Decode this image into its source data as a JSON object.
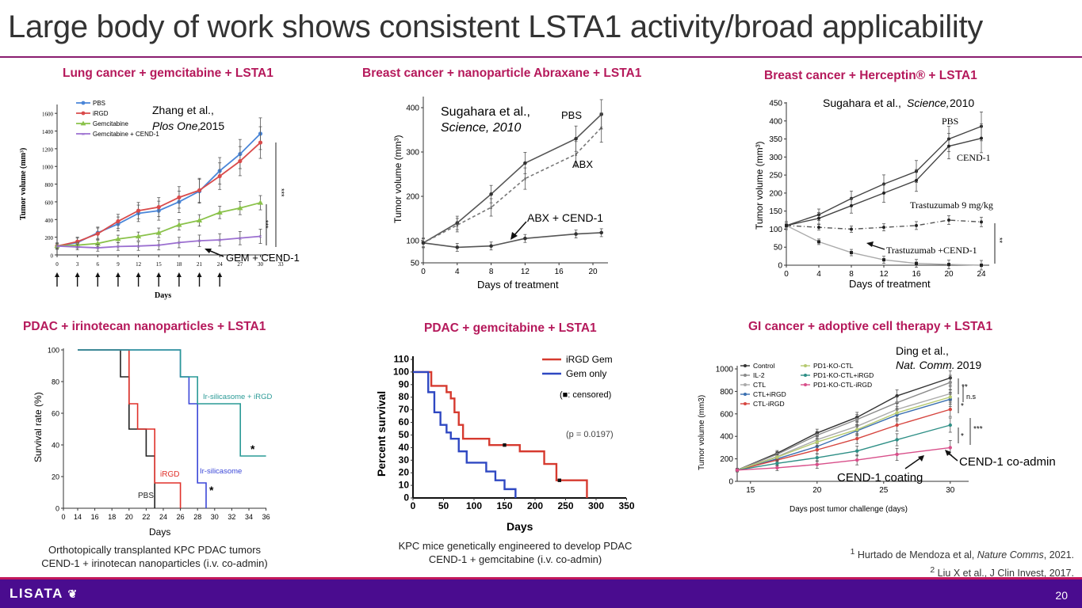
{
  "slide": {
    "title": "Large body of work shows consistent LSTA1 activity/broad applicability",
    "page_number": "20",
    "logo": "LISATA",
    "colors": {
      "title_rule": "#8a1d6f",
      "heading": "#b5195b",
      "footer": "#4a0c8f"
    }
  },
  "panels": {
    "lung": {
      "heading": "Lung cancer + gemcitabine + LSTA1",
      "citation_a": "Zhang et al.,",
      "citation_b": "Plos One,",
      "citation_c": "2015",
      "annotation": "GEM + CEND-1",
      "ylabel": "Tumor volume (mm³)",
      "xlabel": "Days",
      "significance": "***",
      "chart_data": {
        "type": "line",
        "x": [
          0,
          3,
          6,
          9,
          12,
          15,
          18,
          21,
          24,
          27,
          30
        ],
        "xticks": [
          "0",
          "3",
          "6",
          "9",
          "12",
          "15",
          "18",
          "21",
          "24",
          "27",
          "30",
          "33"
        ],
        "yticks": [
          "0",
          "200",
          "400",
          "600",
          "800",
          "1000",
          "1200",
          "1400",
          "1600"
        ],
        "ylim": [
          0,
          1700
        ],
        "series": [
          {
            "name": "PBS",
            "color": "#4a86d8",
            "values": [
              100,
              140,
              250,
              350,
              470,
              500,
              600,
              720,
              950,
              1140,
              1370
            ]
          },
          {
            "name": "iRGD",
            "color": "#d94b4b",
            "values": [
              100,
              150,
              240,
              380,
              500,
              540,
              650,
              730,
              890,
              1060,
              1270
            ]
          },
          {
            "name": "Gemcitabine",
            "color": "#8ac24a",
            "values": [
              100,
              110,
              130,
              180,
              210,
              250,
              340,
              390,
              480,
              530,
              590
            ]
          },
          {
            "name": "Gemcitabine + CEND-1",
            "color": "#9b6fd0",
            "values": [
              100,
              90,
              80,
              95,
              100,
              110,
              140,
              160,
              170,
              190,
              210
            ]
          }
        ]
      }
    },
    "breast_abx": {
      "heading": "Breast cancer + nanoparticle Abraxane + LSTA1",
      "citation_a": "Sugahara et al.,",
      "citation_b": "Science, 2010",
      "ylabel": "Tumor volume (mm³)",
      "xlabel": "Days of treatment",
      "label_pbs": "PBS",
      "label_abx": "ABX",
      "label_combo": "ABX + CEND-1",
      "chart_data": {
        "type": "line",
        "x": [
          0,
          4,
          8,
          12,
          18,
          21
        ],
        "xticks": [
          "0",
          "4",
          "8",
          "12",
          "16",
          "20"
        ],
        "yticks": [
          "50",
          "100",
          "200",
          "300",
          "400"
        ],
        "ylim": [
          50,
          420
        ],
        "series": [
          {
            "name": "PBS",
            "values": [
              95,
              140,
              205,
              275,
              330,
              385
            ]
          },
          {
            "name": "ABX",
            "values": [
              95,
              135,
              175,
              240,
              295,
              355
            ]
          },
          {
            "name": "ABX + CEND-1",
            "values": [
              95,
              85,
              88,
              105,
              115,
              118
            ]
          }
        ]
      }
    },
    "breast_her": {
      "heading": "Breast cancer + Herceptin® + LSTA1",
      "citation_a": "Sugahara et al.,",
      "citation_b": "Science,",
      "citation_c": "2010",
      "ylabel": "Tumor volume (mm³)",
      "xlabel": "Days of treatment",
      "label_pbs": "PBS",
      "label_cend": "CEND-1",
      "label_tras": "Trastuzumab 9 mg/kg",
      "label_combo": "Trastuzumab +CEND-1",
      "significance": "**",
      "chart_data": {
        "type": "line",
        "x": [
          0,
          4,
          8,
          12,
          16,
          20,
          24
        ],
        "xticks": [
          "0",
          "4",
          "8",
          "12",
          "16",
          "20",
          "24"
        ],
        "yticks": [
          "0",
          "50",
          "100",
          "150",
          "200",
          "250",
          "300",
          "350",
          "400",
          "450"
        ],
        "ylim": [
          0,
          450
        ],
        "series": [
          {
            "name": "PBS",
            "values": [
              110,
              140,
              185,
              225,
              260,
              350,
              385
            ]
          },
          {
            "name": "CEND-1",
            "values": [
              110,
              130,
              165,
              200,
              235,
              330,
              352
            ]
          },
          {
            "name": "Trastuzumab 9 mg/kg",
            "values": [
              110,
              105,
              100,
              105,
              110,
              125,
              120
            ]
          },
          {
            "name": "Trastuzumab +CEND-1",
            "values": [
              110,
              65,
              35,
              15,
              5,
              2,
              0
            ]
          }
        ]
      }
    },
    "pdac_irino": {
      "heading": "PDAC + irinotecan nanoparticles + LSTA1",
      "ylabel": "Survival rate (%)",
      "xlabel": "Days",
      "label_irgd": "iRGD",
      "label_pbs": "PBS",
      "label_ir": "Ir-silicasome",
      "label_ir_irgd": "Ir-silicasome + iRGD",
      "caption_line1": "Orthotopically transplanted KPC PDAC tumors",
      "caption_line2": "CEND-1 + irinotecan nanoparticles (i.v. co-admin)",
      "chart_data": {
        "type": "line",
        "xticks": [
          "0",
          "14",
          "16",
          "18",
          "20",
          "22",
          "24",
          "26",
          "28",
          "30",
          "32",
          "34",
          "36"
        ],
        "yticks": [
          "0",
          "20",
          "40",
          "60",
          "80",
          "100"
        ],
        "ylim": [
          0,
          100
        ],
        "series": [
          {
            "name": "PBS",
            "color": "#222222",
            "steps": [
              [
                14,
                100
              ],
              [
                19,
                100
              ],
              [
                19,
                83
              ],
              [
                20,
                83
              ],
              [
                20,
                50
              ],
              [
                22,
                50
              ],
              [
                22,
                33
              ],
              [
                23,
                33
              ],
              [
                23,
                0
              ]
            ]
          },
          {
            "name": "iRGD",
            "color": "#e0312a",
            "steps": [
              [
                14,
                100
              ],
              [
                20,
                100
              ],
              [
                20,
                66
              ],
              [
                21,
                66
              ],
              [
                21,
                50
              ],
              [
                23,
                50
              ],
              [
                23,
                16
              ],
              [
                26,
                16
              ],
              [
                26,
                0
              ]
            ]
          },
          {
            "name": "Ir-silicasome",
            "color": "#3b47d8",
            "steps": [
              [
                14,
                100
              ],
              [
                26,
                100
              ],
              [
                26,
                83
              ],
              [
                27,
                83
              ],
              [
                27,
                66
              ],
              [
                28,
                66
              ],
              [
                28,
                16
              ],
              [
                29,
                16
              ],
              [
                29,
                0
              ]
            ]
          },
          {
            "name": "Ir-silicasome + iRGD",
            "color": "#2a9a96",
            "steps": [
              [
                14,
                100
              ],
              [
                26,
                100
              ],
              [
                26,
                83
              ],
              [
                28,
                83
              ],
              [
                28,
                66
              ],
              [
                33,
                66
              ],
              [
                33,
                33
              ],
              [
                36,
                33
              ]
            ]
          }
        ]
      }
    },
    "pdac_gem": {
      "heading": "PDAC + gemcitabine + LSTA1",
      "ylabel": "Percent survival",
      "xlabel": "Days",
      "legend_irgd": "iRGD Gem",
      "legend_gem": "Gem only",
      "censored": "(■: censored)",
      "pvalue": "(p = 0.0197)",
      "caption_line1": "KPC mice genetically engineered to develop PDAC",
      "caption_line2": "CEND-1 + gemcitabine (i.v. co-admin)",
      "chart_data": {
        "type": "line",
        "xticks": [
          "0",
          "50",
          "100",
          "150",
          "200",
          "250",
          "300",
          "350"
        ],
        "yticks": [
          "0",
          "10",
          "20",
          "30",
          "40",
          "50",
          "60",
          "70",
          "80",
          "90",
          "100",
          "110"
        ],
        "ylim": [
          0,
          110
        ],
        "series": [
          {
            "name": "iRGD Gem",
            "color": "#d63a2f",
            "steps": [
              [
                0,
                100
              ],
              [
                30,
                100
              ],
              [
                30,
                89
              ],
              [
                55,
                89
              ],
              [
                55,
                84
              ],
              [
                62,
                84
              ],
              [
                62,
                79
              ],
              [
                68,
                79
              ],
              [
                68,
                68
              ],
              [
                75,
                68
              ],
              [
                75,
                58
              ],
              [
                82,
                58
              ],
              [
                82,
                47
              ],
              [
                125,
                47
              ],
              [
                125,
                42
              ],
              [
                175,
                42
              ],
              [
                175,
                37
              ],
              [
                215,
                37
              ],
              [
                215,
                27
              ],
              [
                235,
                27
              ],
              [
                235,
                14
              ],
              [
                285,
                14
              ],
              [
                285,
                0
              ]
            ]
          },
          {
            "name": "Gem only",
            "color": "#2f48c2",
            "steps": [
              [
                0,
                100
              ],
              [
                25,
                100
              ],
              [
                25,
                84
              ],
              [
                35,
                84
              ],
              [
                35,
                68
              ],
              [
                45,
                68
              ],
              [
                45,
                58
              ],
              [
                55,
                58
              ],
              [
                55,
                52
              ],
              [
                62,
                52
              ],
              [
                62,
                47
              ],
              [
                75,
                47
              ],
              [
                75,
                37
              ],
              [
                88,
                37
              ],
              [
                88,
                28
              ],
              [
                120,
                28
              ],
              [
                120,
                21
              ],
              [
                135,
                21
              ],
              [
                135,
                14
              ],
              [
                150,
                14
              ],
              [
                150,
                7
              ],
              [
                168,
                7
              ],
              [
                168,
                0
              ]
            ]
          }
        ]
      }
    },
    "gi": {
      "heading": "GI cancer + adoptive cell therapy + LSTA1",
      "citation_a": "Ding et al.,",
      "citation_b": "Nat. Comm.",
      "citation_c": "2019",
      "ylabel": "Tumor volume (mm3)",
      "xlabel": "Days post tumor challenge (days)",
      "label_coating": "CEND-1 coating",
      "label_coadmin": "CEND-1 co-admin",
      "sig1": "**",
      "sig2": "n.s",
      "sig3": "*",
      "sig4": "***",
      "sig5": "*",
      "chart_data": {
        "type": "line",
        "x": [
          14,
          17,
          20,
          23,
          26,
          30
        ],
        "xticks": [
          "15",
          "20",
          "25",
          "30"
        ],
        "yticks": [
          "0",
          "200",
          "400",
          "600",
          "800",
          "1000"
        ],
        "ylim": [
          0,
          1000
        ],
        "series": [
          {
            "name": "Control",
            "color": "#333333",
            "values": [
              100,
              250,
              430,
              570,
              760,
              920
            ]
          },
          {
            "name": "IL-2",
            "color": "#8a8a8a",
            "values": [
              100,
              240,
              410,
              550,
              700,
              880
            ]
          },
          {
            "name": "CTL",
            "color": "#aaaaaa",
            "values": [
              100,
              220,
              370,
              490,
              640,
              780
            ]
          },
          {
            "name": "CTL+iRGD",
            "color": "#3a6fb0",
            "values": [
              100,
              200,
              310,
              450,
              590,
              730
            ]
          },
          {
            "name": "CTL-iRGD",
            "color": "#d6453f",
            "values": [
              100,
              190,
              280,
              380,
              500,
              640
            ]
          },
          {
            "name": "PD1-KO-CTL",
            "color": "#b5c970",
            "values": [
              100,
              215,
              350,
              460,
              610,
              750
            ]
          },
          {
            "name": "PD1-KO-CTL+iRGD",
            "color": "#2e8f86",
            "values": [
              100,
              160,
              210,
              270,
              370,
              500
            ]
          },
          {
            "name": "PD1-KO-CTL-iRGD",
            "color": "#d84f8a",
            "values": [
              100,
              120,
              150,
              190,
              240,
              300
            ]
          }
        ]
      }
    }
  },
  "references": {
    "ref1_num": "1",
    "ref1_text": "Hurtado de Mendoza et al,",
    "ref1_journal": "Nature Comms",
    "ref1_year": ", 2021.",
    "ref2_num": "2",
    "ref2_text": "Liu X et al., J Clin Invest, 2017."
  }
}
